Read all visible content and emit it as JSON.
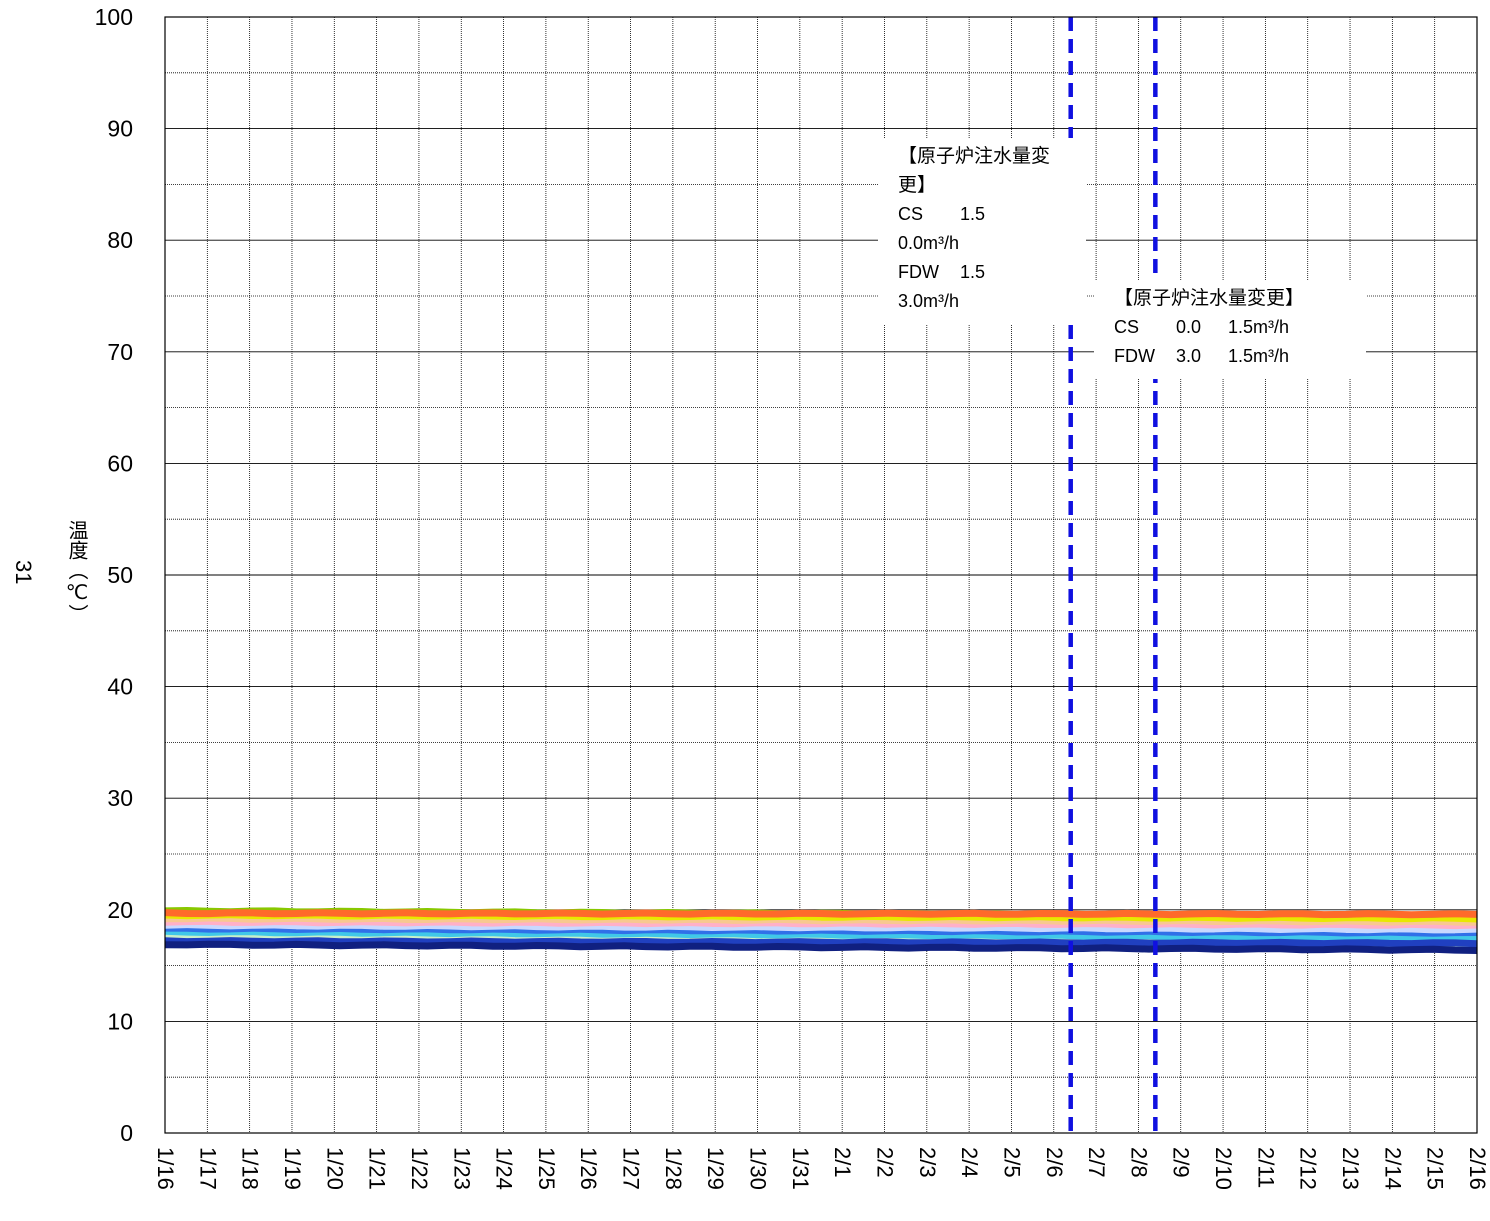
{
  "chart_data": {
    "type": "line",
    "title": "",
    "xlabel": "",
    "ylabel": "温度（℃）",
    "ylabel_prefix": "31",
    "ylim": [
      0,
      100
    ],
    "yticks": [
      0,
      10,
      20,
      30,
      40,
      50,
      60,
      70,
      80,
      90,
      100
    ],
    "x_categories": [
      "1/16",
      "1/17",
      "1/18",
      "1/19",
      "1/20",
      "1/21",
      "1/22",
      "1/23",
      "1/24",
      "1/25",
      "1/26",
      "1/27",
      "1/28",
      "1/29",
      "1/30",
      "1/31",
      "2/1",
      "2/2",
      "2/3",
      "2/4",
      "2/5",
      "2/6",
      "2/7",
      "2/8",
      "2/9",
      "2/10",
      "2/11",
      "2/12",
      "2/13",
      "2/14",
      "2/15",
      "2/16"
    ],
    "grid": true,
    "series": [
      {
        "color": "#88c800",
        "start": 19.9,
        "end": 19.4
      },
      {
        "color": "#e8e800",
        "start": 19.3,
        "end": 19.0
      },
      {
        "color": "#ff6a2a",
        "start": 19.7,
        "end": 19.6
      },
      {
        "color": "#f8c890",
        "start": 18.9,
        "end": 18.6
      },
      {
        "color": "#ffb0c8",
        "start": 18.6,
        "end": 18.3
      },
      {
        "color": "#c8d8ff",
        "start": 18.3,
        "end": 18.0
      },
      {
        "color": "#3070e8",
        "start": 18.0,
        "end": 17.6
      },
      {
        "color": "#40c8e8",
        "start": 17.7,
        "end": 17.3
      },
      {
        "color": "#c8f0c8",
        "start": 17.4,
        "end": 16.9
      },
      {
        "color": "#2040c0",
        "start": 17.2,
        "end": 17.0
      },
      {
        "color": "#102080",
        "start": 16.9,
        "end": 16.4
      }
    ],
    "event_lines": [
      {
        "x_days": 21.4,
        "color": "#1010e0"
      },
      {
        "x_days": 23.4,
        "color": "#1010e0"
      }
    ],
    "annotations": [
      {
        "title": "【原子炉注水量変更】",
        "rows": [
          [
            "CS",
            "1.5",
            "0.0m³/h"
          ],
          [
            "FDW",
            "1.5",
            "3.0m³/h"
          ]
        ]
      },
      {
        "title": "【原子炉注水量変更】",
        "rows": [
          [
            "CS",
            "0.0",
            "1.5m³/h"
          ],
          [
            "FDW",
            "3.0",
            "1.5m³/h"
          ]
        ]
      }
    ]
  }
}
